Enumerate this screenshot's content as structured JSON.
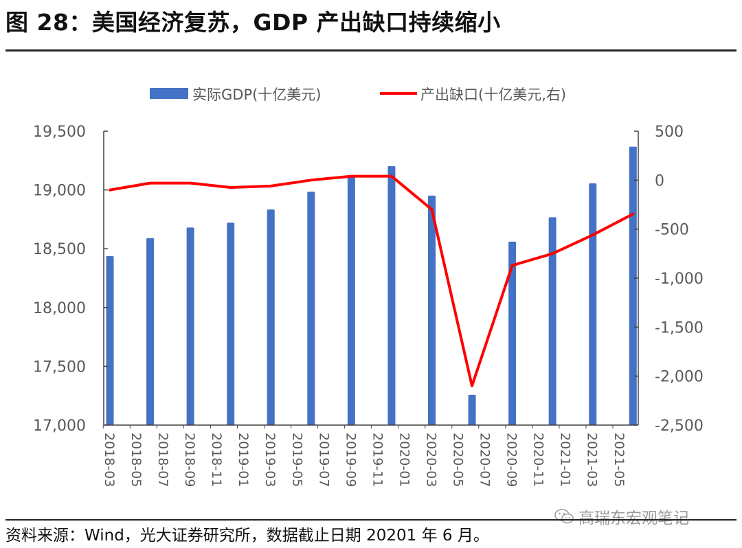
{
  "header": {
    "title": "图 28：美国经济复苏，GDP 产出缺口持续缩小"
  },
  "footer": {
    "source": "资料来源：Wind，光大证券研究所，数据截止日期 20201 年 6 月。",
    "watermark": "高瑞东宏观笔记",
    "watermark_icon": "wechat-icon"
  },
  "colors": {
    "bar": "#4472C4",
    "line": "#FF0000",
    "axis": "#404040",
    "text": "#595959"
  },
  "chart_data": {
    "type": "bar+line",
    "title": "美国经济复苏，GDP 产出缺口持续缩小",
    "legend": {
      "position": "top",
      "entries": [
        {
          "name": "实际GDP(十亿美元)",
          "type": "bar",
          "axis": "left"
        },
        {
          "name": "产出缺口(十亿美元,右)",
          "type": "line",
          "axis": "right"
        }
      ]
    },
    "x_tick_labels": [
      "2018-03",
      "2018-05",
      "2018-07",
      "2018-09",
      "2018-11",
      "2019-01",
      "2019-03",
      "2019-05",
      "2019-07",
      "2019-09",
      "2019-11",
      "2020-01",
      "2020-03",
      "2020-05",
      "2020-07",
      "2020-09",
      "2020-11",
      "2021-01",
      "2021-03",
      "2021-05"
    ],
    "x_range_months": [
      "2018-03",
      "2021-06"
    ],
    "categories": [
      "2018-03",
      "2018-06",
      "2018-09",
      "2018-12",
      "2019-03",
      "2019-06",
      "2019-09",
      "2019-12",
      "2020-03",
      "2020-06",
      "2020-09",
      "2020-12",
      "2021-03",
      "2021-06"
    ],
    "series": [
      {
        "name": "实际GDP(十亿美元)",
        "type": "bar",
        "axis": "left",
        "values": [
          18437,
          18590,
          18680,
          18722,
          18834,
          18985,
          19120,
          19202,
          18952,
          17258,
          18560,
          18768,
          19056,
          19368
        ]
      },
      {
        "name": "产出缺口(十亿美元,右)",
        "type": "line",
        "axis": "right",
        "values": [
          -100,
          -30,
          -30,
          -75,
          -60,
          0,
          40,
          40,
          -300,
          -2100,
          -870,
          -750,
          -560,
          -345
        ]
      }
    ],
    "y_left": {
      "range": [
        17000,
        19500
      ],
      "ticks": [
        17000,
        17500,
        18000,
        18500,
        19000,
        19500
      ],
      "tick_labels": [
        "17,000",
        "17,500",
        "18,000",
        "18,500",
        "19,000",
        "19,500"
      ]
    },
    "y_right": {
      "range": [
        -2500,
        500
      ],
      "ticks": [
        -2500,
        -2000,
        -1500,
        -1000,
        -500,
        0,
        500
      ],
      "tick_labels": [
        "-2,500",
        "-2,000",
        "-1,500",
        "-1,000",
        "-500",
        "0",
        "500"
      ]
    },
    "grid": false
  }
}
